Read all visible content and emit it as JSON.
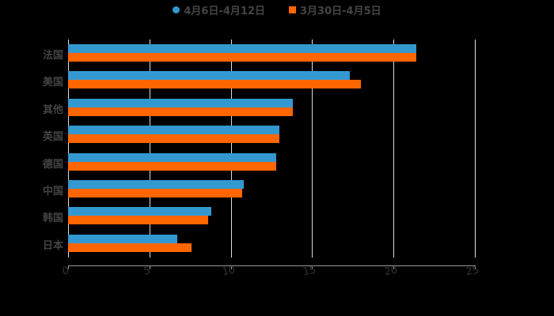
{
  "colors": {
    "series1": "#3398D0",
    "series2": "#FF6600"
  },
  "legend": [
    {
      "label": "4月6日-4月12日",
      "shape": "circle",
      "color": "#3398D0"
    },
    {
      "label": "3月30日-4月5日",
      "shape": "square",
      "color": "#FF6600"
    }
  ],
  "chart_data": {
    "type": "bar",
    "orientation": "horizontal",
    "title": "",
    "xlabel": "",
    "ylabel": "",
    "categories": [
      "法国",
      "美国",
      "其他",
      "英国",
      "德国",
      "中国",
      "韩国",
      "日本"
    ],
    "series": [
      {
        "name": "4月6日-4月12日",
        "values": [
          21.4,
          17.3,
          13.8,
          13.0,
          12.8,
          10.8,
          8.8,
          6.7
        ]
      },
      {
        "name": "3月30日-4月5日",
        "values": [
          21.4,
          18.0,
          13.8,
          13.0,
          12.8,
          10.7,
          8.6,
          7.6
        ]
      }
    ],
    "xlim": [
      0,
      25
    ],
    "xticks": [
      "0",
      "5",
      "10",
      "15",
      "20",
      "25"
    ],
    "grid": true,
    "legend_position": "top"
  }
}
